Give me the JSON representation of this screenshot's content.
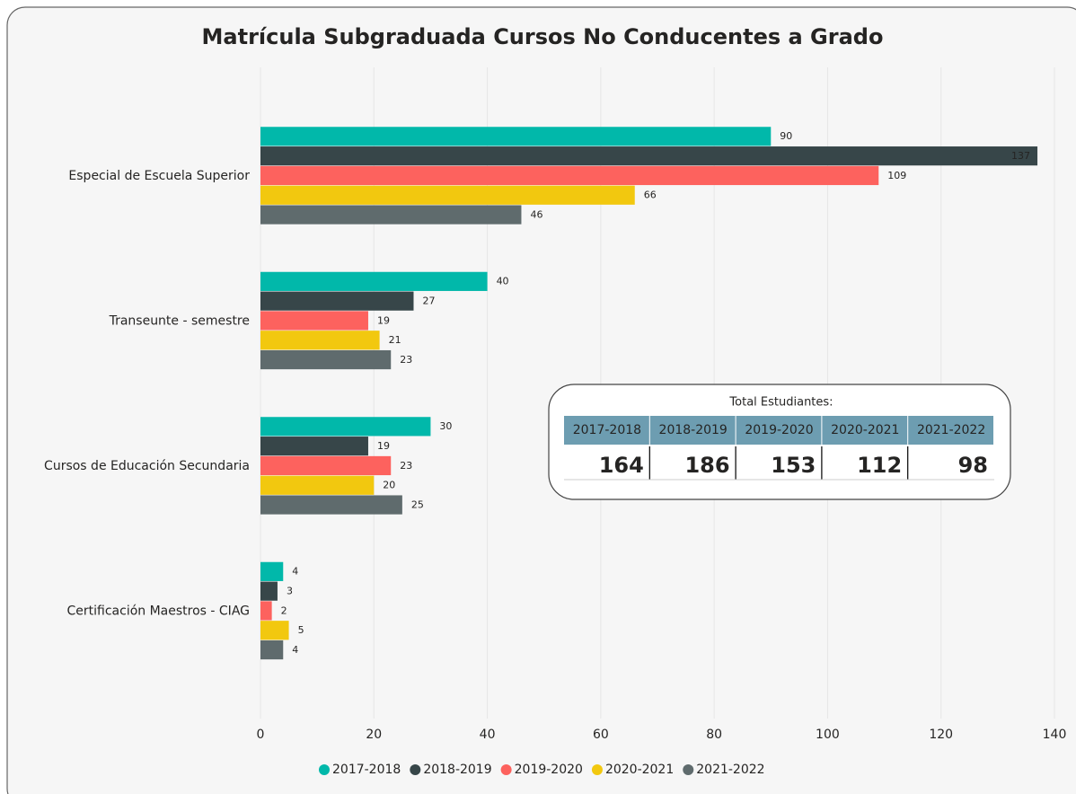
{
  "chart_data": {
    "type": "bar",
    "orientation": "horizontal",
    "title": "Matrícula Subgraduada Cursos No Conducentes a Grado",
    "categories": [
      "Especial de Escuela Superior",
      "Transeunte - semestre",
      "Cursos de Educación Secundaria",
      "Certificación Maestros - CIAG"
    ],
    "series": [
      {
        "name": "2017-2018",
        "color": "#01B8AA",
        "values": [
          90,
          40,
          30,
          4
        ]
      },
      {
        "name": "2018-2019",
        "color": "#374649",
        "values": [
          137,
          27,
          19,
          3
        ]
      },
      {
        "name": "2019-2020",
        "color": "#FD625E",
        "values": [
          109,
          19,
          23,
          2
        ]
      },
      {
        "name": "2020-2021",
        "color": "#F2C80F",
        "values": [
          66,
          21,
          20,
          5
        ]
      },
      {
        "name": "2021-2022",
        "color": "#5F6B6D",
        "values": [
          46,
          23,
          25,
          4
        ]
      }
    ],
    "xlim": [
      0,
      140
    ],
    "xticks": [
      0,
      20,
      40,
      60,
      80,
      100,
      120,
      140
    ],
    "grid": true,
    "legend": "bottom"
  },
  "card": {
    "title": "Total Estudiantes:",
    "headers": [
      "2017-2018",
      "2018-2019",
      "2019-2020",
      "2020-2021",
      "2021-2022"
    ],
    "values": [
      164,
      186,
      153,
      112,
      98
    ]
  }
}
